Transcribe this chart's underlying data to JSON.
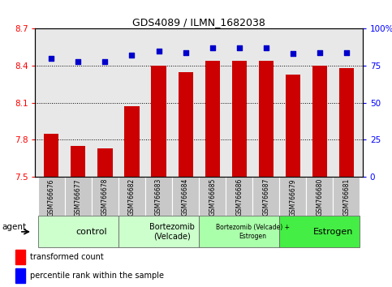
{
  "title": "GDS4089 / ILMN_1682038",
  "samples": [
    "GSM766676",
    "GSM766677",
    "GSM766678",
    "GSM766682",
    "GSM766683",
    "GSM766684",
    "GSM766685",
    "GSM766686",
    "GSM766687",
    "GSM766679",
    "GSM766680",
    "GSM766681"
  ],
  "transformed_count": [
    7.85,
    7.75,
    7.73,
    8.07,
    8.4,
    8.35,
    8.44,
    8.44,
    8.44,
    8.33,
    8.4,
    8.38
  ],
  "percentile_rank": [
    80,
    78,
    78,
    82,
    85,
    84,
    87,
    87,
    87,
    83,
    84,
    84
  ],
  "ylim_left": [
    7.5,
    8.7
  ],
  "ylim_right": [
    0,
    100
  ],
  "yticks_left": [
    7.5,
    7.8,
    8.1,
    8.4,
    8.7
  ],
  "ytick_labels_left": [
    "7.5",
    "7.8",
    "8.1",
    "8.4",
    "8.7"
  ],
  "yticks_right": [
    0,
    25,
    50,
    75,
    100
  ],
  "ytick_labels_right": [
    "0",
    "25",
    "50",
    "75",
    "100%"
  ],
  "bar_color": "#cc0000",
  "dot_color": "#0000cc",
  "groups": [
    {
      "label": "control",
      "start": 0,
      "end": 3,
      "color": "#ccffcc",
      "fontsize": 8
    },
    {
      "label": "Bortezomib\n(Velcade)",
      "start": 3,
      "end": 6,
      "color": "#ccffcc",
      "fontsize": 7
    },
    {
      "label": "Bortezomib (Velcade) +\nEstrogen",
      "start": 6,
      "end": 9,
      "color": "#aaffaa",
      "fontsize": 5.5
    },
    {
      "label": "Estrogen",
      "start": 9,
      "end": 12,
      "color": "#44ee44",
      "fontsize": 8
    }
  ],
  "agent_label": "agent",
  "legend_red": "transformed count",
  "legend_blue": "percentile rank within the sample",
  "plot_bg": "#e8e8e8",
  "sample_box_color": "#c8c8c8",
  "title_fontsize": 9
}
